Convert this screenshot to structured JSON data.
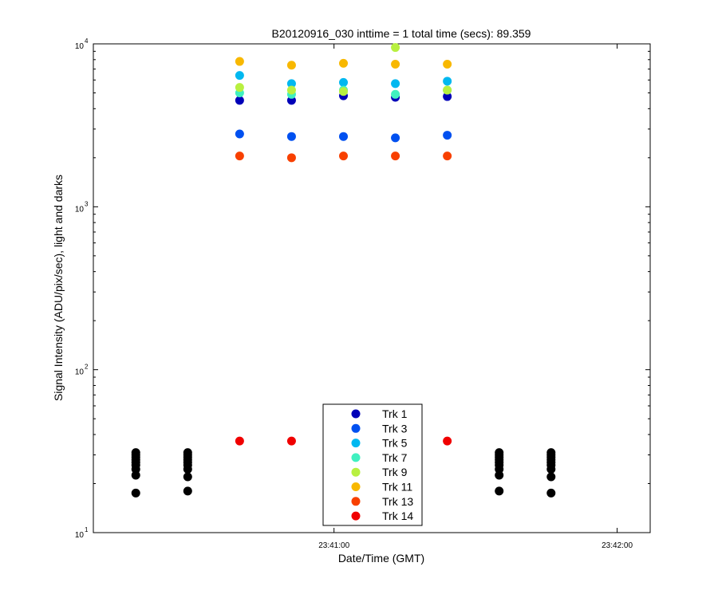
{
  "chart_data": {
    "type": "scatter",
    "title": "B20120916_030 inttime = 1 total time (secs): 89.359",
    "xlabel": "Date/Time (GMT)",
    "ylabel": "Signal Intensity (ADU/pix/sec), light and darks",
    "yscale": "log",
    "ylim": [
      10,
      10000
    ],
    "xlim": [
      "23:40:09",
      "23:42:07"
    ],
    "x_ticks": [
      "23:41:00",
      "23:42:00"
    ],
    "y_ticks": [
      {
        "value": 10,
        "base": "10",
        "exp": "1"
      },
      {
        "value": 100,
        "base": "10",
        "exp": "2"
      },
      {
        "value": 1000,
        "base": "10",
        "exp": "3"
      },
      {
        "value": 10000,
        "base": "10",
        "exp": "4"
      }
    ],
    "grid": false,
    "legend_position": "bottom-center",
    "light_times": [
      "23:40:40",
      "23:40:51",
      "23:41:02",
      "23:41:13",
      "23:41:24"
    ],
    "dark_times": [
      "23:40:18",
      "23:40:29",
      "23:41:35",
      "23:41:46"
    ],
    "series": [
      {
        "name": "Trk 1",
        "color": "#0000b8",
        "values": [
          4500,
          4500,
          4800,
          4700,
          4750
        ]
      },
      {
        "name": "Trk 3",
        "color": "#0050f0",
        "values": [
          2800,
          2700,
          2700,
          2650,
          2750
        ]
      },
      {
        "name": "Trk 5",
        "color": "#00b8f0",
        "values": [
          6400,
          5700,
          5800,
          5700,
          5900
        ]
      },
      {
        "name": "Trk 7",
        "color": "#40f0c0",
        "values": [
          5000,
          4900,
          5200,
          4900,
          5200
        ]
      },
      {
        "name": "Trk 9",
        "color": "#b8f040",
        "values": [
          5400,
          5200,
          5100,
          9500,
          5200
        ]
      },
      {
        "name": "Trk 11",
        "color": "#f8b800",
        "values": [
          7800,
          7400,
          7600,
          7500,
          7500
        ]
      },
      {
        "name": "Trk 13",
        "color": "#f84000",
        "values": [
          2050,
          2000,
          2050,
          2050,
          2050
        ]
      },
      {
        "name": "Trk 14",
        "color": "#f00000",
        "values": [
          36.5,
          36.5,
          36.5,
          36.5,
          36.5
        ]
      }
    ],
    "darks": {
      "color": "#000000",
      "values": [
        [
          17.5,
          22.5,
          24.5,
          26.0,
          27.0,
          28.0,
          29.0,
          30.0,
          31.0
        ],
        [
          18.0,
          22.0,
          24.5,
          26.0,
          27.0,
          28.0,
          29.0,
          30.0,
          31.0
        ],
        [
          18.0,
          22.5,
          24.5,
          26.0,
          27.0,
          28.0,
          29.0,
          30.0,
          31.0
        ],
        [
          17.5,
          22.0,
          24.5,
          26.0,
          27.0,
          28.0,
          29.0,
          30.0,
          31.0
        ]
      ]
    }
  }
}
